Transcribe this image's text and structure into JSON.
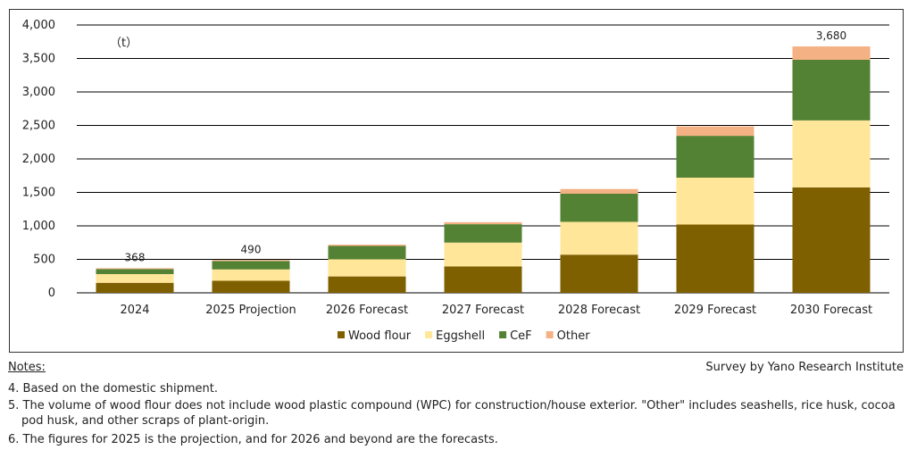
{
  "chart_data": {
    "type": "bar",
    "stacked": true,
    "unit": "（t）",
    "ylim": [
      0,
      4000
    ],
    "yticks": [
      "0",
      "500",
      "1,000",
      "1,500",
      "2,000",
      "2,500",
      "3,000",
      "3,500",
      "4,000"
    ],
    "ytick_values": [
      0,
      500,
      1000,
      1500,
      2000,
      2500,
      3000,
      3500,
      4000
    ],
    "categories": [
      "2024",
      "2025 Projection",
      "2026 Forecast",
      "2027 Forecast",
      "2028 Forecast",
      "2029 Forecast",
      "2030 Forecast"
    ],
    "series": [
      {
        "name": "Wood flour",
        "color": "#7f6000",
        "values": [
          150,
          180,
          245,
          395,
          570,
          1020,
          1575
        ]
      },
      {
        "name": "Eggshell",
        "color": "#ffe699",
        "values": [
          130,
          170,
          255,
          355,
          490,
          700,
          1000
        ]
      },
      {
        "name": "CeF",
        "color": "#548235",
        "values": [
          75,
          125,
          200,
          275,
          420,
          625,
          905
        ]
      },
      {
        "name": "Other",
        "color": "#f4b183",
        "values": [
          13,
          15,
          20,
          30,
          70,
          140,
          200
        ]
      }
    ],
    "data_labels": [
      "368",
      "490",
      "",
      "",
      "",
      "",
      "3,680"
    ],
    "legend_position": "bottom",
    "grid": true
  },
  "notes": {
    "heading": "Notes:",
    "source": "Survey by Yano Research Institute",
    "note4": "4. Based on the domestic shipment.",
    "note5_line1": "5. The volume of wood flour does not include wood plastic compound (WPC) for construction/house exterior. \"Other\" includes seashells, rice husk, cocoa",
    "note5_line2": "pod husk, and other scraps of plant-origin.",
    "note6": "6. The figures for 2025 is the projection, and for 2026 and beyond are the forecasts."
  }
}
